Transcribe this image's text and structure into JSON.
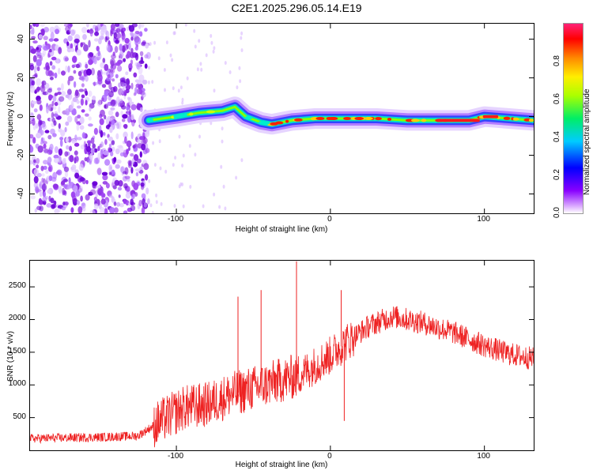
{
  "title": "C2E1.2025.296.05.14.E19",
  "chart_data": [
    {
      "type": "heatmap",
      "name": "spectrogram",
      "xlabel": "Height of straight line (km)",
      "ylabel": "Frequency (Hz)",
      "xlim": [
        -195,
        132
      ],
      "ylim": [
        -50,
        48
      ],
      "xticks": [
        -100,
        0,
        100
      ],
      "yticks": [
        -40,
        -20,
        0,
        20,
        40
      ],
      "noise_region_x": [
        -195,
        -118
      ],
      "trace": [
        {
          "x": -118,
          "y": -2
        },
        {
          "x": -100,
          "y": 0
        },
        {
          "x": -85,
          "y": 2
        },
        {
          "x": -70,
          "y": 3
        },
        {
          "x": -62,
          "y": 5
        },
        {
          "x": -55,
          "y": 0
        },
        {
          "x": -45,
          "y": -3
        },
        {
          "x": -38,
          "y": -4
        },
        {
          "x": -25,
          "y": -2
        },
        {
          "x": -10,
          "y": -1
        },
        {
          "x": 0,
          "y": -1
        },
        {
          "x": 10,
          "y": -1
        },
        {
          "x": 30,
          "y": -1
        },
        {
          "x": 50,
          "y": -2
        },
        {
          "x": 70,
          "y": -2
        },
        {
          "x": 90,
          "y": -2
        },
        {
          "x": 100,
          "y": 0
        },
        {
          "x": 132,
          "y": -2
        }
      ],
      "colorbar": {
        "label": "Normalized spectral amplitude",
        "range": [
          0,
          1
        ],
        "ticks": [
          0.0,
          0.2,
          0.4,
          0.6,
          0.8
        ],
        "tick_labels": [
          "0.0",
          "0.2",
          "0.4",
          "0.6",
          "0.8"
        ]
      }
    },
    {
      "type": "line",
      "name": "snr",
      "xlabel": "Height of straight line (km)",
      "ylabel": "SNR (10 * v/v)",
      "xlim": [
        -195,
        132
      ],
      "ylim": [
        0,
        2900
      ],
      "xticks": [
        -100,
        0,
        100
      ],
      "yticks": [
        500,
        1000,
        1500,
        2000,
        2500
      ],
      "color": "#ee2222",
      "envelope": [
        {
          "x": -195,
          "y": 180
        },
        {
          "x": -150,
          "y": 200
        },
        {
          "x": -125,
          "y": 220
        },
        {
          "x": -110,
          "y": 450
        },
        {
          "x": -95,
          "y": 650
        },
        {
          "x": -80,
          "y": 700
        },
        {
          "x": -65,
          "y": 850
        },
        {
          "x": -50,
          "y": 950
        },
        {
          "x": -35,
          "y": 1050
        },
        {
          "x": -20,
          "y": 1150
        },
        {
          "x": -10,
          "y": 1300
        },
        {
          "x": 0,
          "y": 1450
        },
        {
          "x": 10,
          "y": 1650
        },
        {
          "x": 25,
          "y": 1900
        },
        {
          "x": 40,
          "y": 2050
        },
        {
          "x": 60,
          "y": 1950
        },
        {
          "x": 80,
          "y": 1800
        },
        {
          "x": 100,
          "y": 1600
        },
        {
          "x": 115,
          "y": 1480
        },
        {
          "x": 132,
          "y": 1400
        }
      ],
      "spikes": [
        {
          "x": -60,
          "y": 2350
        },
        {
          "x": -45,
          "y": 2450
        },
        {
          "x": -22,
          "y": 2890
        },
        {
          "x": 7,
          "y": 2450
        },
        {
          "x": 9,
          "y": 450
        }
      ]
    }
  ]
}
